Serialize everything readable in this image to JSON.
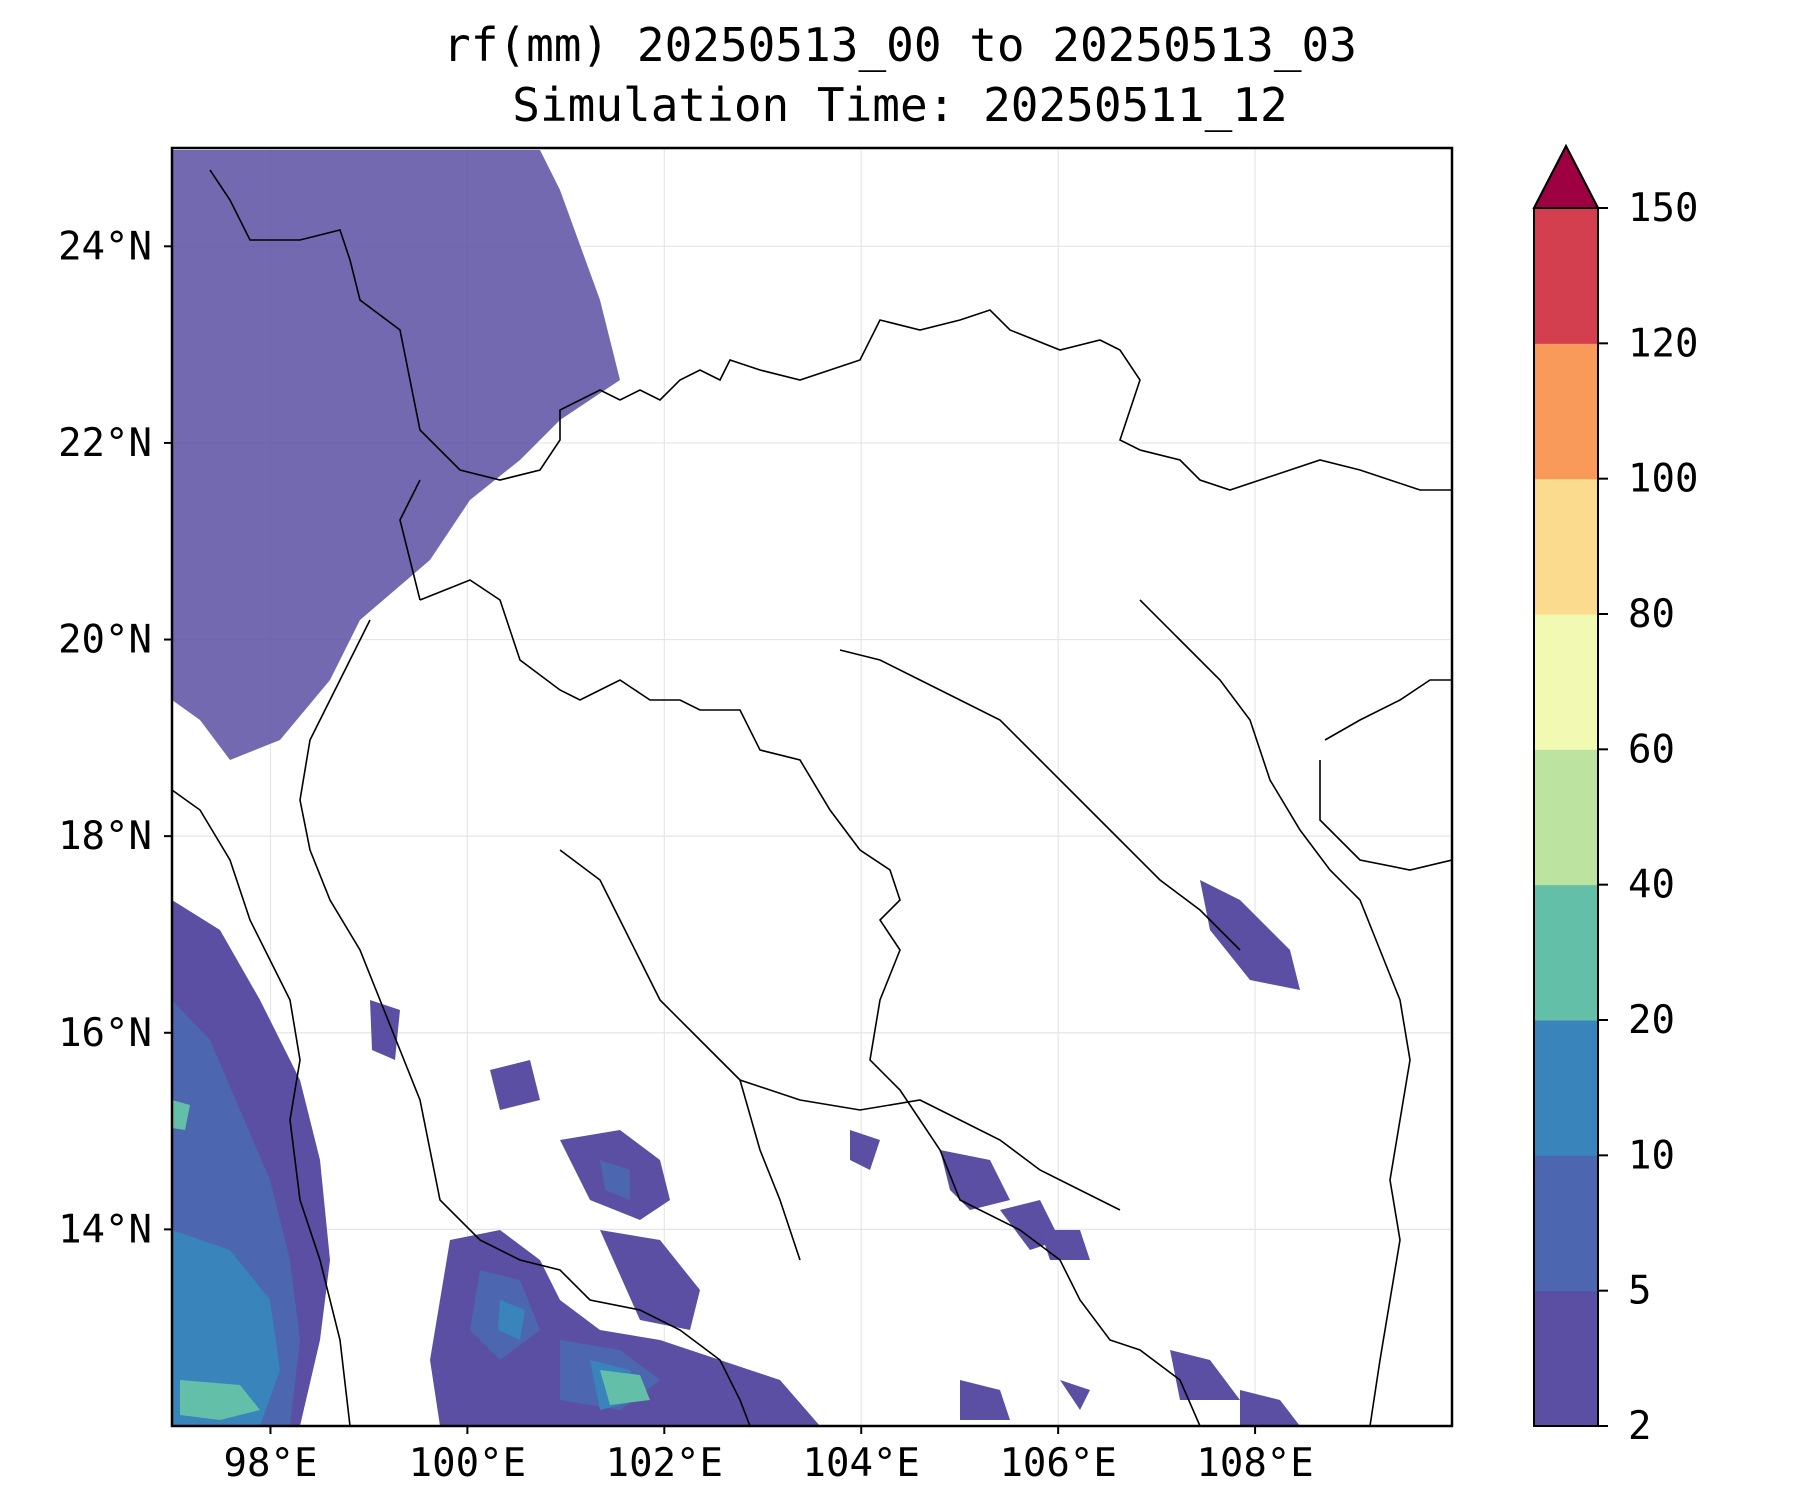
{
  "title": {
    "line1": "rf(mm) 20250513_00 to 20250513_03",
    "line2": "Simulation Time: 20250511_12"
  },
  "map": {
    "lon_range": [
      97,
      110
    ],
    "lat_range": [
      12,
      25
    ],
    "x_ticks": [
      "98°E",
      "100°E",
      "102°E",
      "104°E",
      "106°E",
      "108°E"
    ],
    "y_ticks": [
      "24°N",
      "22°N",
      "20°N",
      "18°N",
      "16°N",
      "14°N"
    ],
    "grid": true
  },
  "colorbar": {
    "levels": [
      "2",
      "5",
      "10",
      "20",
      "40",
      "60",
      "80",
      "100",
      "120",
      "150"
    ],
    "colors": [
      "#5a4fa2",
      "#4d66b0",
      "#3884bb",
      "#64bfa9",
      "#bde3a1",
      "#f2f9b3",
      "#fbdc8e",
      "#f9995a",
      "#d43f4f",
      "#9d0142"
    ],
    "extend": "max"
  }
}
